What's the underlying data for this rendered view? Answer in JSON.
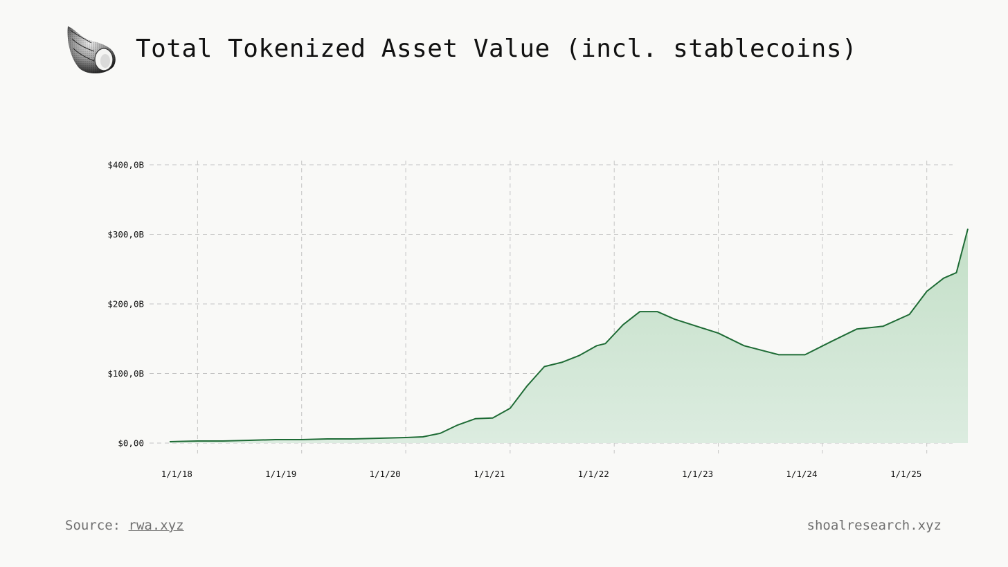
{
  "header": {
    "title": "Total Tokenized Asset Value (incl. stablecoins)",
    "logo_icon": "seashell-icon"
  },
  "footer": {
    "source_label": "Source:",
    "source_link": "rwa.xyz",
    "site": "shoalresearch.xyz"
  },
  "colors": {
    "line": "#1e6b35",
    "fill": "#c8e2cc",
    "grid": "#c4c4c4",
    "background": "#f9f9f7"
  },
  "chart_data": {
    "type": "area",
    "title": "Total Tokenized Asset Value (incl. stablecoins)",
    "xlabel": "",
    "ylabel": "",
    "ylim": [
      0,
      400
    ],
    "y_unit": "B USD",
    "y_ticks": [
      0,
      100,
      200,
      300,
      400
    ],
    "y_tick_labels": [
      "$0,00",
      "$100,0B",
      "$200,0B",
      "$300,0B",
      "$400,0B"
    ],
    "x_tick_dates": [
      "2018-01-01",
      "2019-01-01",
      "2020-01-01",
      "2021-01-01",
      "2022-01-01",
      "2023-01-01",
      "2024-01-01",
      "2025-01-01"
    ],
    "x_tick_labels": [
      "1/1/18",
      "1/1/19",
      "1/1/20",
      "1/1/21",
      "1/1/22",
      "1/1/23",
      "1/1/24",
      "1/1/25"
    ],
    "x_range": [
      "2017-09-25",
      "2025-05-25"
    ],
    "grid": true,
    "legend": "none",
    "series": [
      {
        "dates": [
          "2017-09-25",
          "2018-01-01",
          "2018-04-01",
          "2018-07-01",
          "2018-10-01",
          "2019-01-01",
          "2019-04-01",
          "2019-07-01",
          "2019-10-01",
          "2020-01-01",
          "2020-03-01",
          "2020-05-01",
          "2020-07-01",
          "2020-09-01",
          "2020-11-01",
          "2021-01-01",
          "2021-03-01",
          "2021-05-01",
          "2021-07-01",
          "2021-09-01",
          "2021-11-01",
          "2021-12-01",
          "2022-02-01",
          "2022-04-01",
          "2022-06-01",
          "2022-08-01",
          "2023-01-01",
          "2023-04-01",
          "2023-08-01",
          "2023-11-01",
          "2024-02-01",
          "2024-05-01",
          "2024-08-01",
          "2024-11-01",
          "2025-01-01",
          "2025-03-01",
          "2025-04-15",
          "2025-05-25"
        ],
        "values": [
          2,
          3,
          3,
          4,
          5,
          5,
          6,
          6,
          7,
          8,
          9,
          14,
          26,
          35,
          36,
          50,
          82,
          110,
          116,
          126,
          140,
          143,
          170,
          189,
          189,
          178,
          158,
          140,
          127,
          127,
          146,
          164,
          168,
          185,
          218,
          237,
          245,
          308
        ]
      }
    ]
  }
}
